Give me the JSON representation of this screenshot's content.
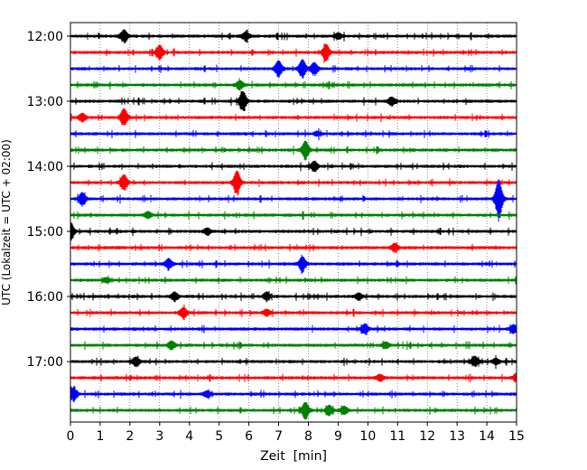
{
  "chart_data": {
    "type": "line",
    "title": "",
    "xlabel": "Zeit  [min]",
    "ylabel": "UTC (Lokalzeit = UTC + 02:00)",
    "xlim": [
      0,
      15
    ],
    "x_ticks": [
      "0",
      "1",
      "2",
      "3",
      "4",
      "5",
      "6",
      "7",
      "8",
      "9",
      "10",
      "11",
      "12",
      "13",
      "14",
      "15"
    ],
    "y_ticks": [
      "12:00",
      "13:00",
      "14:00",
      "15:00",
      "16:00",
      "17:00"
    ],
    "grid": "vertical dotted",
    "legend": "none",
    "trace_interval_min": 15,
    "first_trace": "12:00",
    "trace_colors": [
      "#000000",
      "#ff0000",
      "#0000ff",
      "#008000"
    ],
    "traces": [
      {
        "start": "12:00",
        "color": "#000000",
        "events": [
          {
            "t": 1.8,
            "amp": 6
          },
          {
            "t": 5.9,
            "amp": 4
          },
          {
            "t": 9.0,
            "amp": 3
          }
        ]
      },
      {
        "start": "12:15",
        "color": "#ff0000",
        "events": [
          {
            "t": 3.0,
            "amp": 7
          },
          {
            "t": 8.6,
            "amp": 8
          }
        ]
      },
      {
        "start": "12:30",
        "color": "#0000ff",
        "events": [
          {
            "t": 7.0,
            "amp": 8
          },
          {
            "t": 7.8,
            "amp": 9
          },
          {
            "t": 8.2,
            "amp": 6
          }
        ]
      },
      {
        "start": "12:45",
        "color": "#008000",
        "events": [
          {
            "t": 5.7,
            "amp": 4
          }
        ]
      },
      {
        "start": "13:00",
        "color": "#000000",
        "events": [
          {
            "t": 5.8,
            "amp": 10
          },
          {
            "t": 10.8,
            "amp": 4
          }
        ]
      },
      {
        "start": "13:15",
        "color": "#ff0000",
        "events": [
          {
            "t": 0.4,
            "amp": 4
          },
          {
            "t": 1.8,
            "amp": 9
          }
        ]
      },
      {
        "start": "13:30",
        "color": "#0000ff",
        "events": [
          {
            "t": 8.3,
            "amp": 2
          }
        ]
      },
      {
        "start": "13:45",
        "color": "#008000",
        "events": [
          {
            "t": 7.9,
            "amp": 9
          }
        ]
      },
      {
        "start": "14:00",
        "color": "#000000",
        "events": [
          {
            "t": 8.2,
            "amp": 5
          }
        ]
      },
      {
        "start": "14:15",
        "color": "#ff0000",
        "events": [
          {
            "t": 1.8,
            "amp": 8
          },
          {
            "t": 5.6,
            "amp": 12
          }
        ]
      },
      {
        "start": "14:30",
        "color": "#0000ff",
        "events": [
          {
            "t": 0.4,
            "amp": 6
          },
          {
            "t": 14.4,
            "amp": 20
          }
        ]
      },
      {
        "start": "14:45",
        "color": "#008000",
        "events": [
          {
            "t": 2.6,
            "amp": 3
          }
        ]
      },
      {
        "start": "15:00",
        "color": "#000000",
        "events": [
          {
            "t": 0.0,
            "amp": 9
          },
          {
            "t": 4.6,
            "amp": 3
          }
        ]
      },
      {
        "start": "15:15",
        "color": "#ff0000",
        "events": [
          {
            "t": 10.9,
            "amp": 4
          }
        ]
      },
      {
        "start": "15:30",
        "color": "#0000ff",
        "events": [
          {
            "t": 3.3,
            "amp": 5
          },
          {
            "t": 7.8,
            "amp": 7
          }
        ]
      },
      {
        "start": "15:45",
        "color": "#008000",
        "events": [
          {
            "t": 1.2,
            "amp": 2
          }
        ]
      },
      {
        "start": "16:00",
        "color": "#000000",
        "events": [
          {
            "t": 3.5,
            "amp": 4
          },
          {
            "t": 6.6,
            "amp": 4
          },
          {
            "t": 9.7,
            "amp": 3
          }
        ]
      },
      {
        "start": "16:15",
        "color": "#ff0000",
        "events": [
          {
            "t": 3.8,
            "amp": 5
          },
          {
            "t": 6.6,
            "amp": 3
          }
        ]
      },
      {
        "start": "16:30",
        "color": "#0000ff",
        "events": [
          {
            "t": 9.9,
            "amp": 5
          },
          {
            "t": 14.9,
            "amp": 4
          }
        ]
      },
      {
        "start": "16:45",
        "color": "#008000",
        "events": [
          {
            "t": 3.4,
            "amp": 4
          },
          {
            "t": 10.6,
            "amp": 3
          }
        ]
      },
      {
        "start": "17:00",
        "color": "#000000",
        "events": [
          {
            "t": 2.2,
            "amp": 4
          },
          {
            "t": 13.6,
            "amp": 5
          },
          {
            "t": 14.3,
            "amp": 3
          }
        ]
      },
      {
        "start": "17:15",
        "color": "#ff0000",
        "events": [
          {
            "t": 10.4,
            "amp": 3
          },
          {
            "t": 15.0,
            "amp": 4
          }
        ]
      },
      {
        "start": "17:30",
        "color": "#0000ff",
        "events": [
          {
            "t": 0.1,
            "amp": 6
          },
          {
            "t": 4.6,
            "amp": 3
          }
        ]
      },
      {
        "start": "17:45",
        "color": "#008000",
        "events": [
          {
            "t": 7.9,
            "amp": 8
          },
          {
            "t": 8.7,
            "amp": 5
          },
          {
            "t": 9.2,
            "amp": 4
          }
        ]
      }
    ]
  }
}
